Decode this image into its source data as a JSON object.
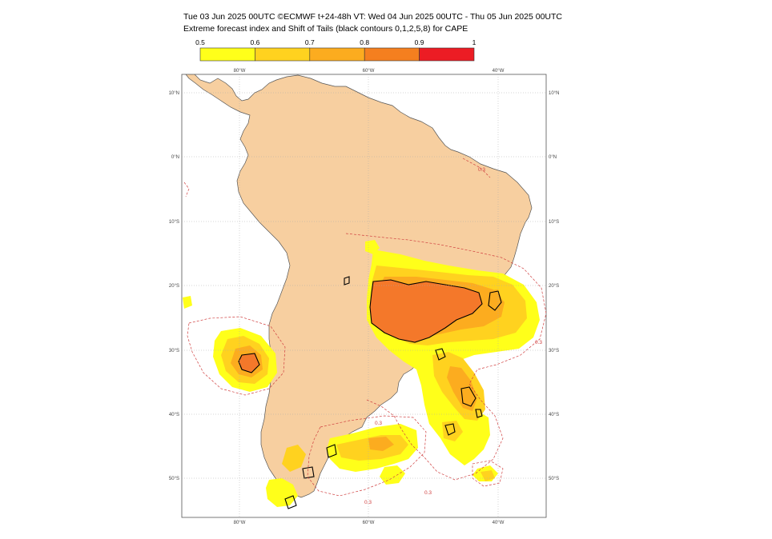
{
  "header": {
    "line1": "Tue 03 Jun 2025 00UTC ©ECMWF t+24-48h  VT: Wed 04 Jun 2025 00UTC - Thu 05 Jun 2025 00UTC",
    "line2": "Extreme forecast index and Shift of Tails (black contours 0,1,2,5,8) for CAPE"
  },
  "colorbar": {
    "tick_labels": [
      "0.5",
      "0.6",
      "0.7",
      "0.8",
      "0.9",
      "1"
    ],
    "colors": [
      "#ffff1a",
      "#ffd21f",
      "#fcac1f",
      "#f57f1f",
      "#ec1c24"
    ]
  },
  "map": {
    "land_color": "#f7cfa0",
    "lon_labels": [
      "80°W",
      "60°W",
      "40°W"
    ],
    "lat_labels": [
      "10°N",
      "0°N",
      "10°S",
      "20°S",
      "30°S",
      "40°S",
      "50°S"
    ],
    "contour_label": "0.3",
    "contour_color": "#d04040"
  }
}
